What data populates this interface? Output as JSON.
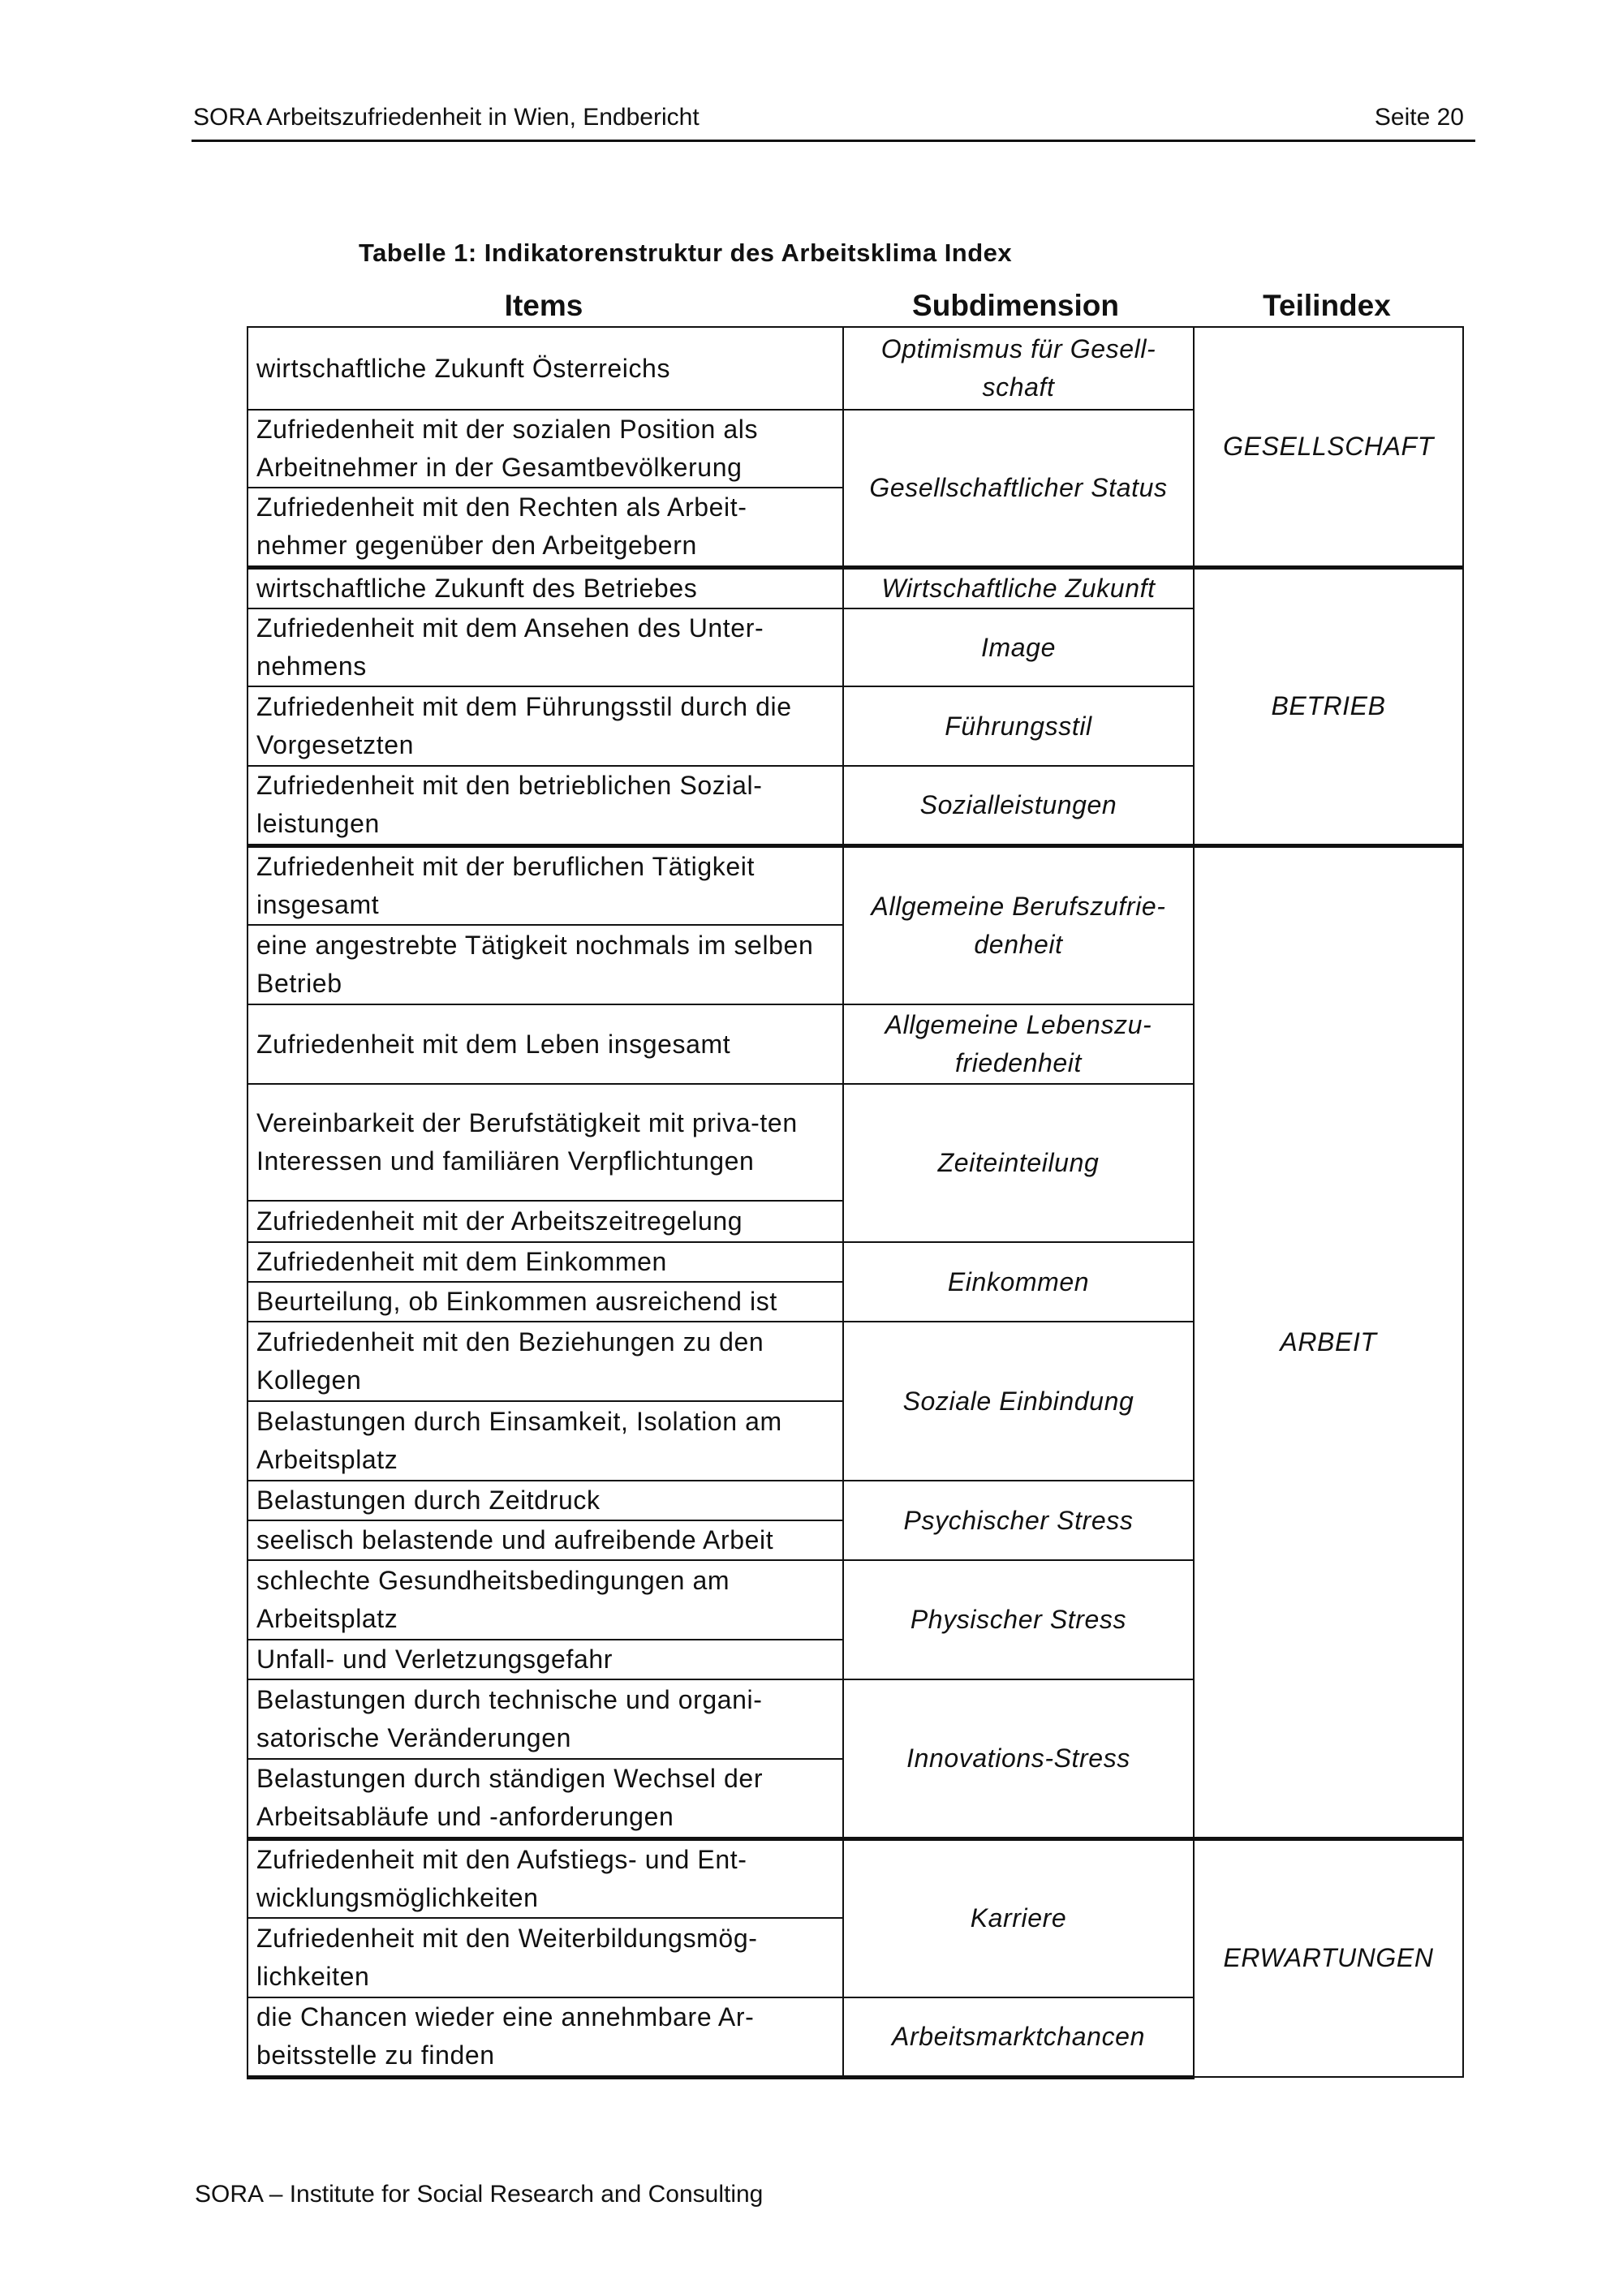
{
  "header": {
    "left": "SORA Arbeitszufriedenheit in Wien, Endbericht",
    "right": "Seite 20"
  },
  "table_title": "Tabelle 1: Indikatorenstruktur des Arbeitsklima Index",
  "columns": [
    "Items",
    "Subdimension",
    "Teilindex"
  ],
  "groups": [
    {
      "teilindex": "GESELLSCHAFT",
      "subdimensions": [
        {
          "label": "Optimismus für Gesell-schaft",
          "items": [
            "wirtschaftliche Zukunft Österreichs"
          ]
        },
        {
          "label": "Gesellschaftlicher Status",
          "items": [
            "Zufriedenheit mit der sozialen Position als Arbeitnehmer in der Gesamtbevölkerung",
            "Zufriedenheit mit den Rechten als Arbeit-nehmer gegenüber den Arbeitgebern"
          ]
        }
      ]
    },
    {
      "teilindex": "BETRIEB",
      "subdimensions": [
        {
          "label": "Wirtschaftliche Zukunft",
          "items": [
            "wirtschaftliche Zukunft des Betriebes"
          ]
        },
        {
          "label": "Image",
          "items": [
            "Zufriedenheit mit dem Ansehen des Unter-nehmens"
          ]
        },
        {
          "label": "Führungsstil",
          "items": [
            "Zufriedenheit mit dem Führungsstil durch die Vorgesetzten"
          ]
        },
        {
          "label": "Sozialleistungen",
          "items": [
            "Zufriedenheit mit den betrieblichen Sozial-leistungen"
          ]
        }
      ]
    },
    {
      "teilindex": "ARBEIT",
      "subdimensions": [
        {
          "label": "Allgemeine Berufszufrie-denheit",
          "items": [
            "Zufriedenheit mit der beruflichen Tätigkeit insgesamt",
            "eine angestrebte Tätigkeit nochmals im selben Betrieb"
          ]
        },
        {
          "label": "Allgemeine Lebenszu-friedenheit",
          "items": [
            "Zufriedenheit mit dem Leben insgesamt"
          ]
        },
        {
          "label": "Zeiteinteilung",
          "items": [
            "Vereinbarkeit der Berufstätigkeit mit priva-ten Interessen und familiären Verpflichtungen",
            "Zufriedenheit mit der Arbeitszeitregelung"
          ]
        },
        {
          "label": "Einkommen",
          "items": [
            "Zufriedenheit mit dem Einkommen",
            "Beurteilung, ob Einkommen ausreichend ist"
          ]
        },
        {
          "label": "Soziale Einbindung",
          "items": [
            "Zufriedenheit mit den Beziehungen zu den Kollegen",
            "Belastungen durch Einsamkeit, Isolation am Arbeitsplatz"
          ]
        },
        {
          "label": "Psychischer Stress",
          "items": [
            "Belastungen durch Zeitdruck",
            "seelisch belastende und aufreibende Arbeit"
          ]
        },
        {
          "label": "Physischer Stress",
          "items": [
            "schlechte Gesundheitsbedingungen am Arbeitsplatz",
            "Unfall- und Verletzungsgefahr"
          ]
        },
        {
          "label": "Innovations-Stress",
          "items": [
            "Belastungen durch technische und organi-satorische Veränderungen",
            "Belastungen durch ständigen Wechsel der Arbeitsabläufe und -anforderungen"
          ]
        }
      ]
    },
    {
      "teilindex": "ERWARTUNGEN",
      "subdimensions": [
        {
          "label": "Karriere",
          "items": [
            "Zufriedenheit mit den Aufstiegs- und Ent-wicklungsmöglichkeiten",
            "Zufriedenheit mit den Weiterbildungsmög-lichkeiten"
          ]
        },
        {
          "label": "Arbeitsmarktchancen",
          "items": [
            "die Chancen wieder eine annehmbare Ar-beitsstelle zu finden"
          ]
        }
      ]
    }
  ],
  "footer": "SORA – Institute for Social Research and Consulting"
}
